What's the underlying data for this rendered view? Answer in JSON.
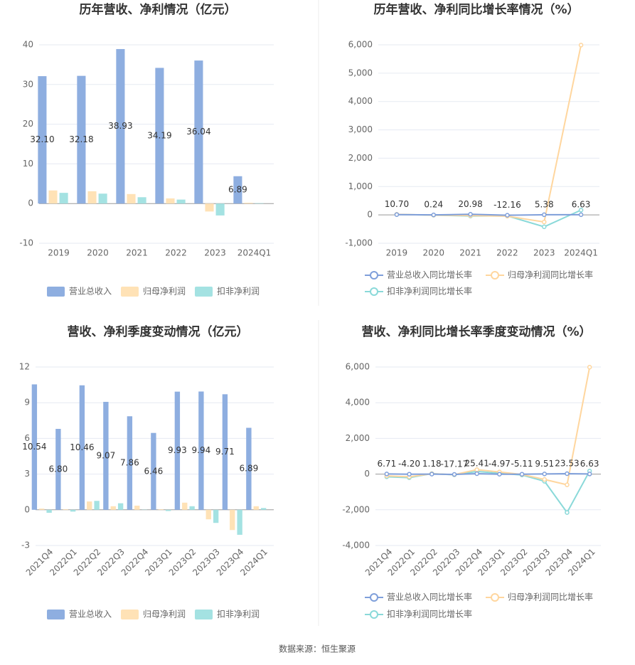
{
  "chart_data": [
    {
      "type": "bar",
      "title": "历年营收、净利情况（亿元）",
      "categories": [
        "2019",
        "2020",
        "2021",
        "2022",
        "2023",
        "2024Q1"
      ],
      "series": [
        {
          "name": "营业总收入",
          "color": "#8eaee0",
          "values": [
            32.1,
            32.18,
            38.93,
            34.19,
            36.04,
            6.89
          ],
          "value_labels": [
            "32.10",
            "32.18",
            "38.93",
            "34.19",
            "36.04",
            "6.89"
          ]
        },
        {
          "name": "归母净利润",
          "color": "#ffe2b6",
          "values": [
            3.3,
            3.1,
            2.4,
            1.3,
            -2.0,
            0.2
          ]
        },
        {
          "name": "扣非净利润",
          "color": "#a4e2e2",
          "values": [
            2.7,
            2.5,
            1.6,
            1.0,
            -3.0,
            0.1
          ]
        }
      ],
      "ylim": [
        -10,
        40
      ],
      "yticks": [
        -10,
        0,
        10,
        20,
        30,
        40
      ],
      "grid": true,
      "legend": "bottom"
    },
    {
      "type": "line",
      "title": "历年营收、净利同比增长率情况（%）",
      "categories": [
        "2019",
        "2020",
        "2021",
        "2022",
        "2023",
        "2024Q1"
      ],
      "series": [
        {
          "name": "营业总收入同比增长率",
          "color": "#7f9fda",
          "values": [
            10.7,
            0.24,
            20.98,
            -12.16,
            5.38,
            6.63
          ],
          "value_labels": [
            "10.70",
            "0.24",
            "20.98",
            "-12.16",
            "5.38",
            "6.63"
          ]
        },
        {
          "name": "归母净利润同比增长率",
          "color": "#ffd69e",
          "values": [
            20,
            -8,
            -25,
            -45,
            -250,
            5990
          ]
        },
        {
          "name": "扣非净利润同比增长率",
          "color": "#8ad9d9",
          "values": [
            15,
            -10,
            -40,
            -35,
            -420,
            170
          ]
        }
      ],
      "ylim": [
        -1000,
        6000
      ],
      "yticks": [
        {
          "value": -1000,
          "label": "-1,000"
        },
        0,
        {
          "value": 1000,
          "label": "1,000"
        },
        {
          "value": 2000,
          "label": "2,000"
        },
        {
          "value": 3000,
          "label": "3,000"
        },
        {
          "value": 4000,
          "label": "4,000"
        },
        {
          "value": 5000,
          "label": "5,000"
        },
        {
          "value": 6000,
          "label": "6,000"
        }
      ],
      "grid": true,
      "legend": "bottom"
    },
    {
      "type": "bar",
      "title": "营收、净利季度变动情况（亿元）",
      "categories": [
        "2021Q4",
        "2022Q1",
        "2022Q2",
        "2022Q3",
        "2022Q4",
        "2023Q1",
        "2023Q2",
        "2023Q3",
        "2023Q4",
        "2024Q1"
      ],
      "series": [
        {
          "name": "营业总收入",
          "color": "#8eaee0",
          "values": [
            10.54,
            6.8,
            10.46,
            9.07,
            7.86,
            6.46,
            9.93,
            9.94,
            9.71,
            6.89
          ],
          "value_labels": [
            "10.54",
            "6.80",
            "10.46",
            "9.07",
            "7.86",
            "6.46",
            "9.93",
            "9.94",
            "9.71",
            "6.89"
          ]
        },
        {
          "name": "归母净利润",
          "color": "#ffe2b6",
          "values": [
            0.1,
            0.05,
            0.7,
            0.3,
            0.35,
            0.05,
            0.6,
            -0.8,
            -1.7,
            0.3
          ]
        },
        {
          "name": "扣非净利润",
          "color": "#a4e2e2",
          "values": [
            -0.25,
            -0.15,
            0.75,
            0.55,
            0.02,
            -0.1,
            0.3,
            -1.1,
            -2.1,
            0.15
          ]
        }
      ],
      "ylim": [
        -3,
        12
      ],
      "yticks": [
        -3,
        0,
        3,
        6,
        9,
        12
      ],
      "grid": true,
      "legend": "bottom"
    },
    {
      "type": "line",
      "title": "营收、净利同比增长率季度变动情况（%）",
      "categories": [
        "2021Q4",
        "2022Q1",
        "2022Q2",
        "2022Q3",
        "2022Q4",
        "2023Q1",
        "2023Q2",
        "2023Q3",
        "2023Q4",
        "2024Q1"
      ],
      "series": [
        {
          "name": "营业总收入同比增长率",
          "color": "#7f9fda",
          "values": [
            6.71,
            -4.2,
            1.18,
            -17.17,
            25.41,
            -4.97,
            -5.11,
            9.51,
            23.53,
            6.63
          ],
          "value_labels": [
            "6.71",
            "-4.20",
            "1.18",
            "-17.17",
            "25.41",
            "-4.97",
            "-5.11",
            "9.51",
            "23.53",
            "6.63"
          ]
        },
        {
          "name": "归母净利润同比增长率",
          "color": "#ffd69e",
          "values": [
            -100,
            -150,
            20,
            -30,
            250,
            120,
            -20,
            -300,
            -600,
            5990
          ]
        },
        {
          "name": "扣非净利润同比增长率",
          "color": "#8ad9d9",
          "values": [
            -150,
            -200,
            30,
            -40,
            150,
            50,
            -50,
            -400,
            -2150,
            170
          ]
        }
      ],
      "ylim": [
        -4000,
        6000
      ],
      "yticks": [
        {
          "value": -4000,
          "label": "-4,000"
        },
        {
          "value": -2000,
          "label": "-2,000"
        },
        0,
        {
          "value": 2000,
          "label": "2,000"
        },
        {
          "value": 4000,
          "label": "4,000"
        },
        {
          "value": 6000,
          "label": "6,000"
        }
      ],
      "grid": true,
      "legend": "bottom"
    }
  ],
  "source": "数据来源：恒生聚源"
}
